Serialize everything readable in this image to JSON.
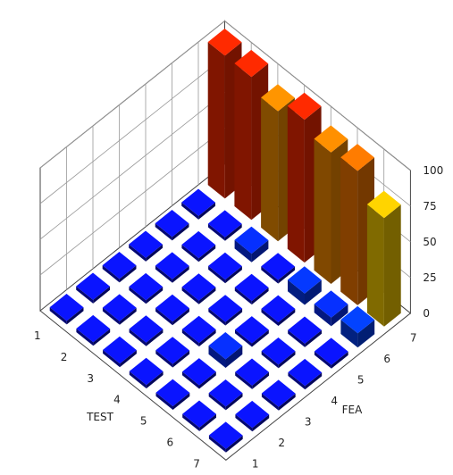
{
  "chart_data": {
    "type": "bar3d",
    "x_axis_label": "TEST",
    "y_axis_label": "FEA",
    "x_categories": [
      "1",
      "2",
      "3",
      "4",
      "5",
      "6",
      "7"
    ],
    "y_categories": [
      "1",
      "2",
      "3",
      "4",
      "5",
      "6",
      "7"
    ],
    "z_ticks": [
      "0",
      "25",
      "50",
      "75",
      "100"
    ],
    "zlim": [
      0,
      100
    ],
    "colormap": [
      "#0a14ff",
      "#ff8a00",
      "#ffd400",
      "#ff2a00"
    ],
    "values": [
      [
        0,
        0,
        0,
        0,
        0,
        0,
        100
      ],
      [
        0,
        0,
        0,
        0,
        0,
        0,
        100
      ],
      [
        0,
        0,
        0,
        0,
        0,
        6,
        91
      ],
      [
        0,
        0,
        0,
        0,
        0,
        0,
        100
      ],
      [
        0,
        0,
        6,
        0,
        0,
        8,
        92
      ],
      [
        0,
        0,
        0,
        0,
        0,
        6,
        94
      ],
      [
        0,
        0,
        0,
        0,
        0,
        10,
        76
      ]
    ]
  }
}
